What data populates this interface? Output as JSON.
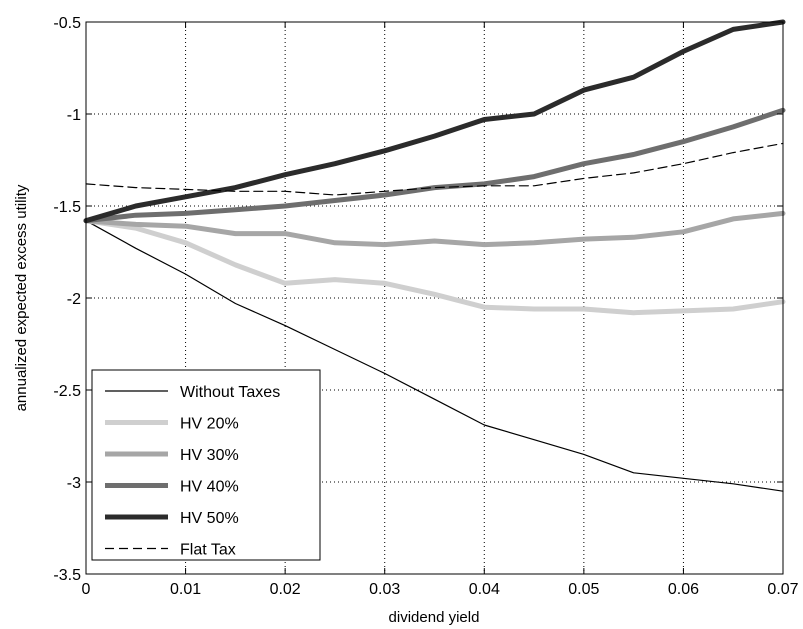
{
  "chart_data": {
    "type": "line",
    "title": "",
    "xlabel": "dividend yield",
    "ylabel": "annualized expected excess utility",
    "xlim": [
      0,
      0.07
    ],
    "ylim": [
      -3.5,
      -0.5
    ],
    "x_ticks": [
      0,
      0.01,
      0.02,
      0.03,
      0.04,
      0.05,
      0.06,
      0.07
    ],
    "x_tick_labels": [
      "0",
      "0.01",
      "0.02",
      "0.03",
      "0.04",
      "0.05",
      "0.06",
      "0.07"
    ],
    "y_ticks": [
      -3.5,
      -3,
      -2.5,
      -2,
      -1.5,
      -1,
      -0.5
    ],
    "y_tick_labels": [
      "-3.5",
      "-3",
      "-2.5",
      "-2",
      "-1.5",
      "-1",
      "-0.5"
    ],
    "grid": true,
    "legend_position": "bottom-left",
    "series": [
      {
        "name": "Without Taxes",
        "color": "#000000",
        "style": "solid-thin",
        "x": [
          0,
          0.005,
          0.01,
          0.015,
          0.02,
          0.025,
          0.03,
          0.035,
          0.04,
          0.045,
          0.05,
          0.055,
          0.06,
          0.065,
          0.07
        ],
        "y": [
          -1.58,
          -1.73,
          -1.87,
          -2.03,
          -2.15,
          -2.28,
          -2.41,
          -2.55,
          -2.69,
          -2.77,
          -2.85,
          -2.95,
          -2.98,
          -3.01,
          -3.05
        ]
      },
      {
        "name": "HV 20%",
        "color": "#cfcfcf",
        "style": "solid-thick",
        "x": [
          0,
          0.005,
          0.01,
          0.015,
          0.02,
          0.025,
          0.03,
          0.035,
          0.04,
          0.045,
          0.05,
          0.055,
          0.06,
          0.065,
          0.07
        ],
        "y": [
          -1.58,
          -1.62,
          -1.7,
          -1.82,
          -1.92,
          -1.9,
          -1.92,
          -1.98,
          -2.05,
          -2.06,
          -2.06,
          -2.08,
          -2.07,
          -2.06,
          -2.02
        ]
      },
      {
        "name": "HV 30%",
        "color": "#a6a6a6",
        "style": "solid-thick",
        "x": [
          0,
          0.005,
          0.01,
          0.015,
          0.02,
          0.025,
          0.03,
          0.035,
          0.04,
          0.045,
          0.05,
          0.055,
          0.06,
          0.065,
          0.07
        ],
        "y": [
          -1.58,
          -1.6,
          -1.61,
          -1.65,
          -1.65,
          -1.7,
          -1.71,
          -1.69,
          -1.71,
          -1.7,
          -1.68,
          -1.67,
          -1.64,
          -1.57,
          -1.54
        ]
      },
      {
        "name": "HV 40%",
        "color": "#6e6e6e",
        "style": "solid-thick",
        "x": [
          0,
          0.005,
          0.01,
          0.015,
          0.02,
          0.025,
          0.03,
          0.035,
          0.04,
          0.045,
          0.05,
          0.055,
          0.06,
          0.065,
          0.07
        ],
        "y": [
          -1.58,
          -1.55,
          -1.54,
          -1.52,
          -1.5,
          -1.47,
          -1.44,
          -1.4,
          -1.38,
          -1.34,
          -1.27,
          -1.22,
          -1.15,
          -1.07,
          -0.98
        ]
      },
      {
        "name": "HV 50%",
        "color": "#2b2b2b",
        "style": "solid-thick",
        "x": [
          0,
          0.005,
          0.01,
          0.015,
          0.02,
          0.025,
          0.03,
          0.035,
          0.04,
          0.045,
          0.05,
          0.055,
          0.06,
          0.065,
          0.07
        ],
        "y": [
          -1.58,
          -1.5,
          -1.45,
          -1.4,
          -1.33,
          -1.27,
          -1.2,
          -1.12,
          -1.03,
          -1.0,
          -0.87,
          -0.8,
          -0.66,
          -0.54,
          -0.5
        ]
      },
      {
        "name": "Flat Tax",
        "color": "#000000",
        "style": "dashed",
        "x": [
          0,
          0.005,
          0.01,
          0.015,
          0.02,
          0.025,
          0.03,
          0.035,
          0.04,
          0.045,
          0.05,
          0.055,
          0.06,
          0.065,
          0.07
        ],
        "y": [
          -1.38,
          -1.4,
          -1.41,
          -1.42,
          -1.42,
          -1.44,
          -1.42,
          -1.4,
          -1.39,
          -1.39,
          -1.35,
          -1.32,
          -1.27,
          -1.21,
          -1.16
        ]
      }
    ]
  }
}
